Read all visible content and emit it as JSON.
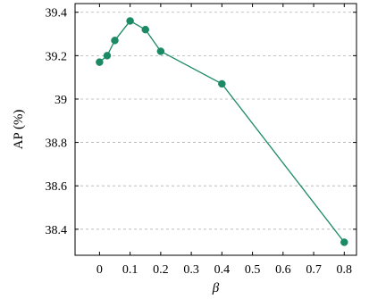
{
  "chart_data": {
    "type": "line",
    "x": [
      0,
      0.025,
      0.05,
      0.1,
      0.15,
      0.2,
      0.4,
      0.8
    ],
    "series": [
      {
        "values": [
          39.17,
          39.2,
          39.27,
          39.36,
          39.32,
          39.22,
          39.07,
          38.34
        ],
        "color": "#1b8a63"
      }
    ],
    "xlabel": "β",
    "ylabel": "AP (%)",
    "xlim": [
      -0.08,
      0.84
    ],
    "ylim": [
      38.28,
      39.44
    ],
    "xticks": [
      0,
      0.1,
      0.2,
      0.3,
      0.4,
      0.5,
      0.6,
      0.7,
      0.8
    ],
    "xtick_labels": [
      "0",
      "0.1",
      "0.2",
      "0.3",
      "0.4",
      "0.5",
      "0.6",
      "0.7",
      "0.8"
    ],
    "yticks": [
      38.4,
      38.6,
      38.8,
      39,
      39.2,
      39.4
    ],
    "ytick_labels": [
      "38.4",
      "38.6",
      "38.8",
      "39",
      "39.2",
      "39.4"
    ],
    "grid": "horizontal-dashed",
    "legend": "none"
  }
}
